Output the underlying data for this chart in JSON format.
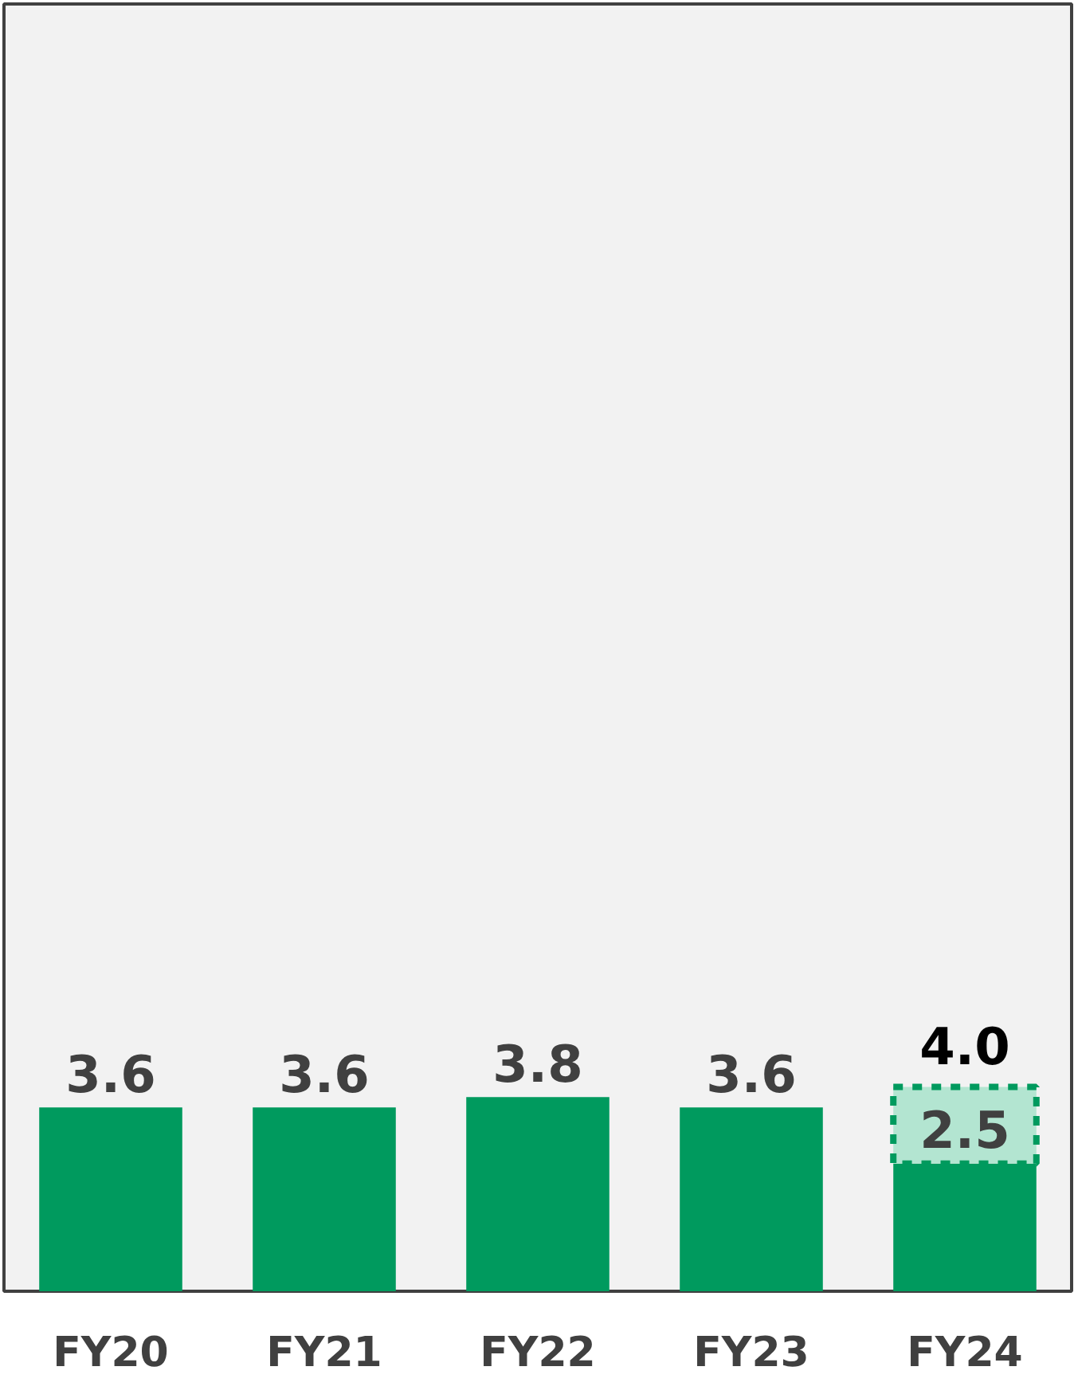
{
  "chart_data": {
    "type": "bar",
    "categories": [
      "FY20",
      "FY21",
      "FY22",
      "FY23",
      "FY24"
    ],
    "stacked": true,
    "ylim": [
      0,
      25.2
    ],
    "tick_labels": "x",
    "grid": false,
    "series": [
      {
        "color": "#009a5e",
        "values": [
          3.6,
          3.6,
          3.8,
          3.6,
          2.5
        ],
        "value_labels": [
          "3.6",
          "3.6",
          "3.8",
          "3.6",
          "2.5"
        ]
      },
      {
        "color": "#b3e5d1",
        "values": [
          null,
          null,
          null,
          null,
          1.5
        ],
        "line_style": "dashed"
      }
    ],
    "totals": [
      null,
      null,
      null,
      null,
      "4.0"
    ]
  }
}
